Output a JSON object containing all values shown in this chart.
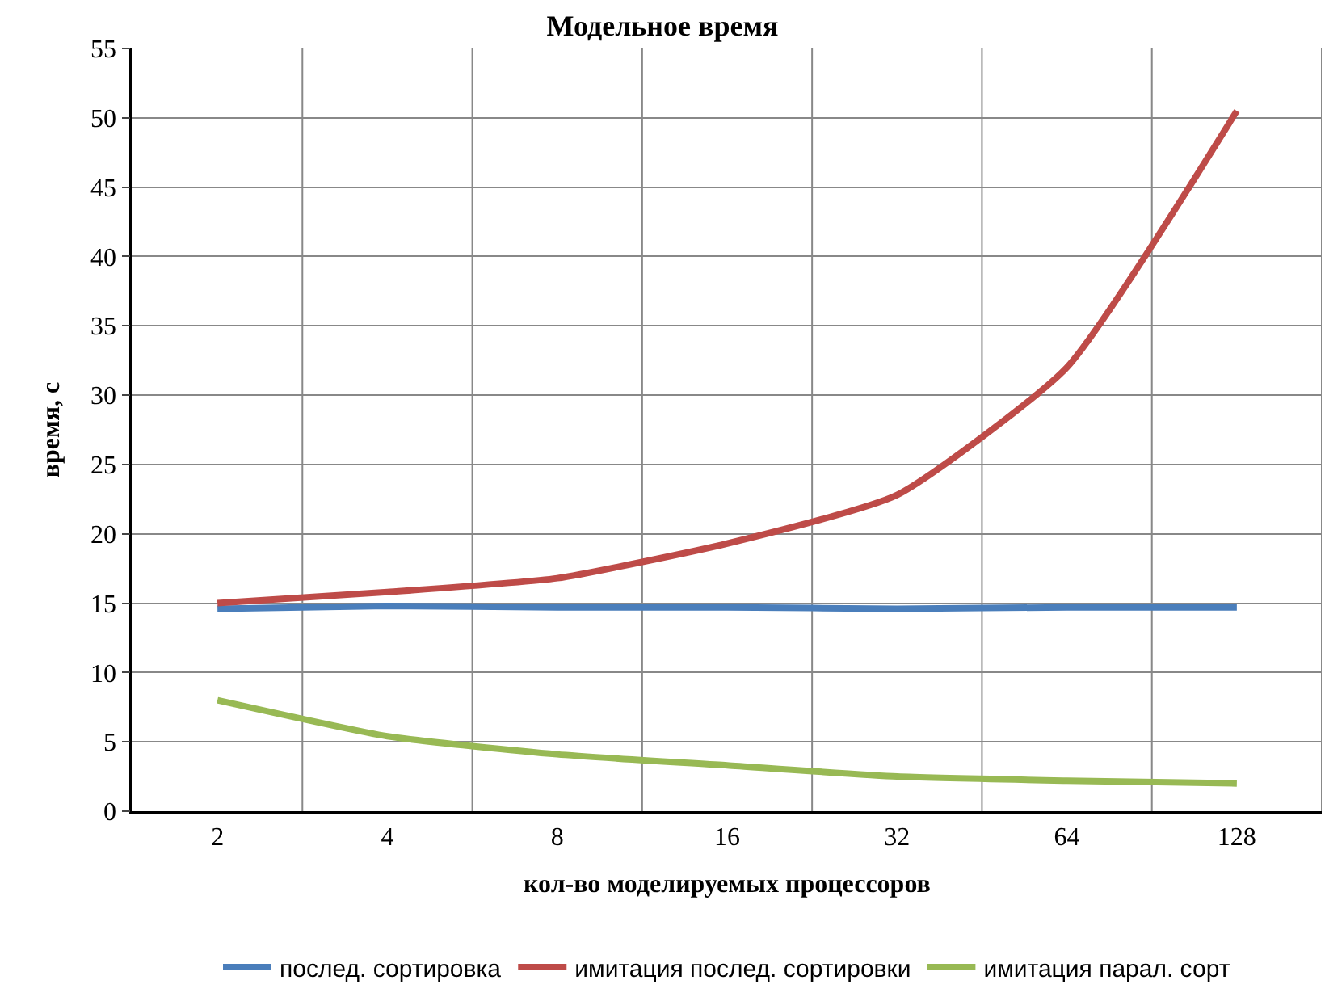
{
  "chart_data": {
    "type": "line",
    "title": "Модельное время",
    "xlabel": "кол-во моделируемых процессоров",
    "ylabel": "время, с",
    "categories": [
      "2",
      "4",
      "8",
      "16",
      "32",
      "64",
      "128"
    ],
    "series": [
      {
        "name": "послед. сортировка",
        "color": "#4a7ebb",
        "values": [
          14.6,
          14.8,
          14.7,
          14.7,
          14.6,
          14.7,
          14.7
        ]
      },
      {
        "name": "имитация послед. сортировки",
        "color": "#be4b48",
        "values": [
          15.0,
          15.8,
          16.8,
          19.3,
          22.8,
          32.0,
          50.5
        ]
      },
      {
        "name": "имитация парал. сорт",
        "color": "#98b954",
        "values": [
          8.0,
          5.4,
          4.1,
          3.3,
          2.5,
          2.2,
          2.0
        ]
      }
    ],
    "ylim": [
      0,
      55
    ],
    "yticks": [
      0,
      5,
      10,
      15,
      20,
      25,
      30,
      35,
      40,
      45,
      50,
      55
    ],
    "grid": true,
    "legend": "bottom",
    "marker": "none",
    "line_style": "solid"
  }
}
